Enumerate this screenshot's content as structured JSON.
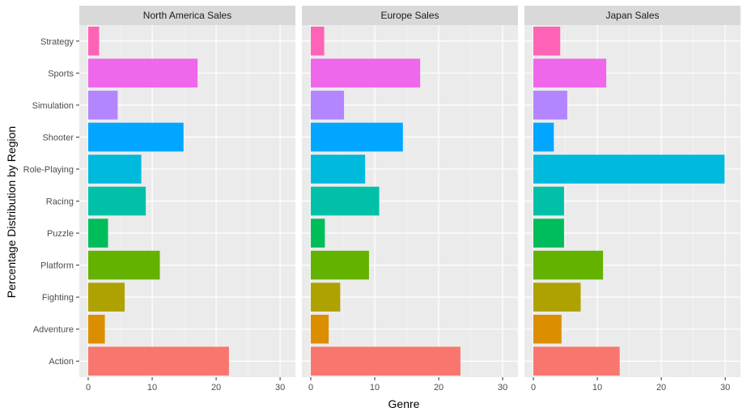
{
  "chart_data": {
    "type": "bar",
    "orientation": "horizontal",
    "facet": "columns",
    "xlabel": "Genre",
    "ylabel": "Percentage Distribution by Region",
    "xlim": [
      0,
      31
    ],
    "xticks": [
      "0",
      "10",
      "20",
      "30"
    ],
    "grid": true,
    "legend": "none",
    "categories": [
      "Action",
      "Adventure",
      "Fighting",
      "Platform",
      "Puzzle",
      "Racing",
      "Role-Playing",
      "Shooter",
      "Simulation",
      "Sports",
      "Strategy"
    ],
    "colors": [
      "#F8766D",
      "#DB8E00",
      "#AEA200",
      "#64B200",
      "#00BD5C",
      "#00C1A7",
      "#00BADE",
      "#00A6FF",
      "#B385FF",
      "#EF67EB",
      "#FF63B6"
    ],
    "panels": [
      {
        "name": "North America Sales",
        "values": [
          22.0,
          2.6,
          5.7,
          11.2,
          3.1,
          9.0,
          8.3,
          14.9,
          4.6,
          17.1,
          1.7
        ]
      },
      {
        "name": "Europe Sales",
        "values": [
          23.4,
          2.8,
          4.6,
          9.1,
          2.2,
          10.7,
          8.5,
          14.4,
          5.2,
          17.1,
          2.1
        ]
      },
      {
        "name": "Japan Sales",
        "values": [
          13.5,
          4.4,
          7.4,
          10.9,
          4.8,
          4.8,
          29.9,
          3.2,
          5.3,
          11.4,
          4.2
        ]
      }
    ]
  }
}
